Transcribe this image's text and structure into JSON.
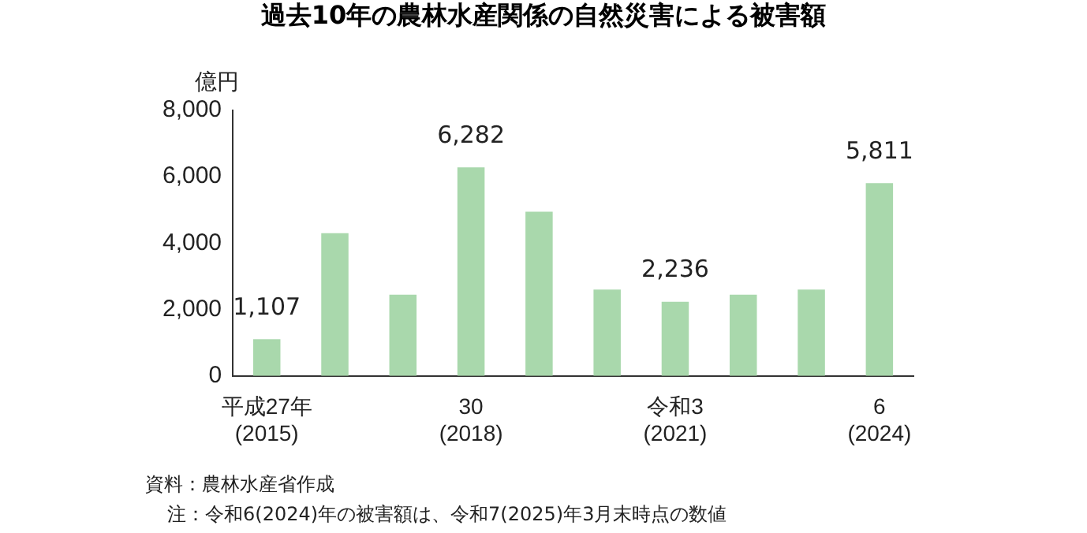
{
  "chart_data": {
    "type": "bar",
    "title": "過去10年の農林水産関係の自然災害による被害額",
    "ylabel": "億円",
    "categories": [
      "平成27年\n(2015)",
      null,
      null,
      "30\n(2018)",
      null,
      null,
      "令和3\n(2021)",
      null,
      null,
      "6\n(2024)"
    ],
    "values": [
      1107,
      4300,
      2450,
      6282,
      4950,
      2600,
      2236,
      2450,
      2600,
      5811
    ],
    "value_labels": [
      "1,107",
      null,
      null,
      "6,282",
      null,
      null,
      "2,236",
      null,
      null,
      "5,811"
    ],
    "color": "#a9d8ac",
    "ylim": [
      0,
      8000
    ],
    "yticks": [
      {
        "value": 0,
        "label": "0"
      },
      {
        "value": 2000,
        "label": "2,000"
      },
      {
        "value": 4000,
        "label": "4,000"
      },
      {
        "value": 6000,
        "label": "6,000"
      },
      {
        "value": 8000,
        "label": "8,000"
      }
    ],
    "grid": false,
    "annotations": [
      "資料：農林水産省作成",
      "注：令和6(2024)年の被害額は、令和7(2025)年3月末時点の数値"
    ]
  }
}
